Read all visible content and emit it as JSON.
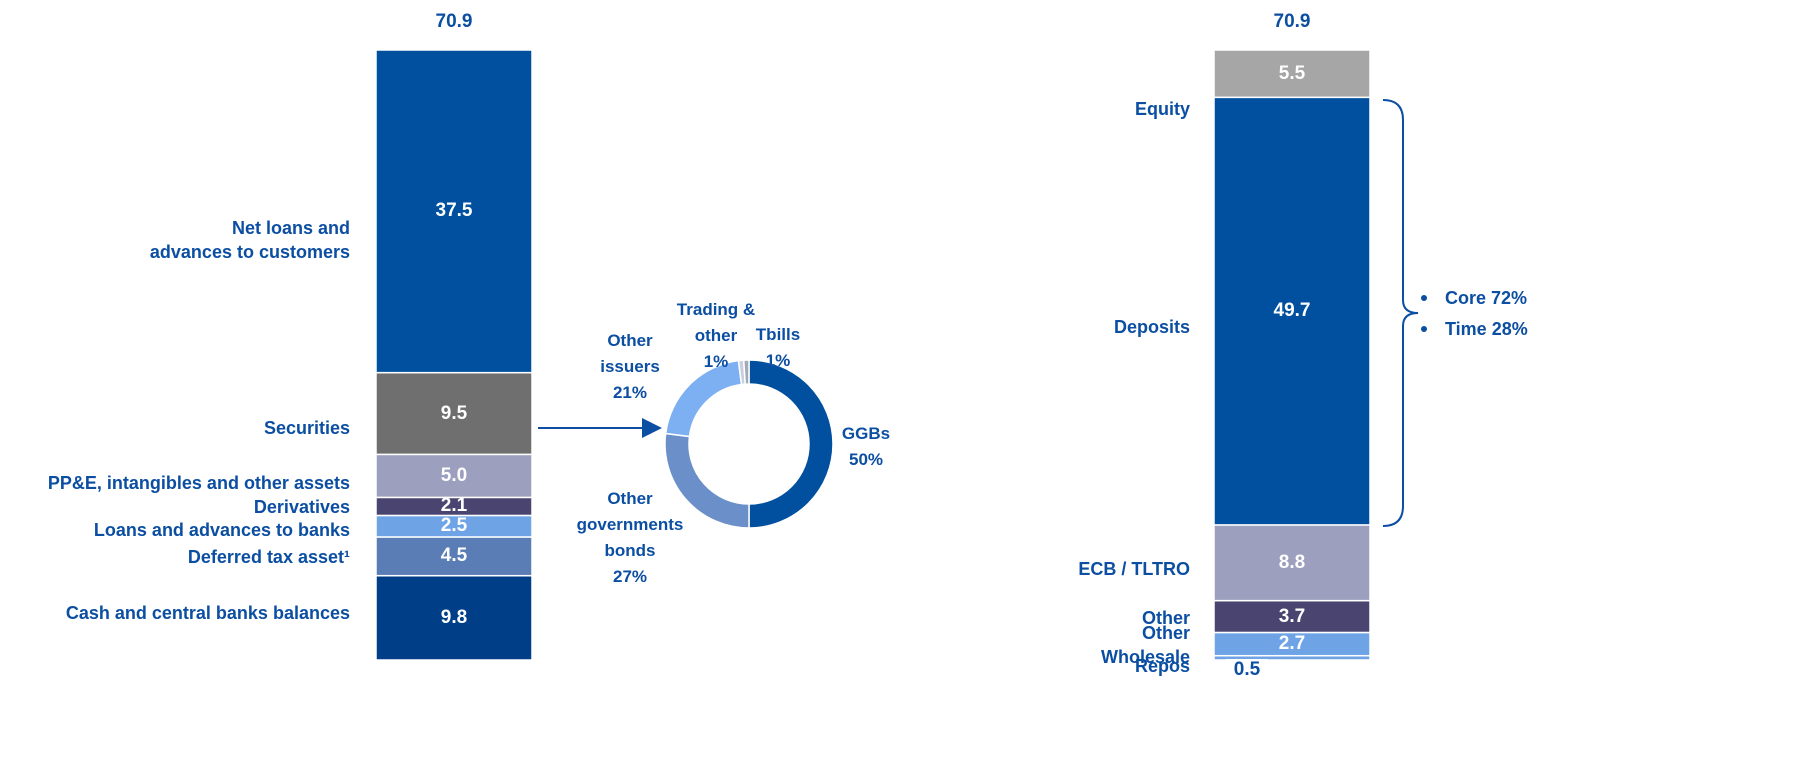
{
  "chart_data": [
    {
      "type": "stacked_bar",
      "total": 70.9,
      "ylim": [
        0,
        70.9
      ],
      "categories": [
        "Cash and central banks balances",
        "Deferred tax asset¹",
        "Loans and advances to banks",
        "Derivatives",
        "PP&E, intangibles and other assets",
        "Securities",
        "Net loans and\nadvances to customers"
      ],
      "values": [
        9.8,
        4.5,
        2.5,
        2.1,
        5.0,
        9.5,
        37.5
      ],
      "value_labels": [
        "9.8",
        "4.5",
        "2.5",
        "2.1",
        "5.0",
        "9.5",
        "37.5"
      ],
      "colors": [
        "#003f87",
        "#5b7db6",
        "#6ea3e6",
        "#4a4470",
        "#9c9fbd",
        "#6f6f6f",
        "#00509f"
      ]
    },
    {
      "type": "donut",
      "categories": [
        "GGBs",
        "Other\ngovernments\nbonds",
        "Other\nissuers",
        "Trading &\nother",
        "Tbills"
      ],
      "values": [
        50,
        27,
        21,
        1,
        1
      ],
      "value_labels": [
        "50%",
        "27%",
        "21%",
        "1%",
        "1%"
      ],
      "colors": [
        "#00509f",
        "#6a8fc9",
        "#7cb0f2",
        "#c9cfdc",
        "#a2a9ba"
      ]
    },
    {
      "type": "stacked_bar",
      "total": 70.9,
      "ylim": [
        0,
        70.9
      ],
      "categories": [
        "Repos",
        "Other\nWholesale",
        "Other",
        "ECB / TLTRO",
        "Deposits",
        "Equity"
      ],
      "values": [
        0.5,
        2.7,
        3.7,
        8.8,
        49.7,
        5.5
      ],
      "colors": [
        "#6ea3e6",
        "#6ea3e6",
        "#4a4470",
        "#9c9fbd",
        "#00509f",
        "#a6a6a6"
      ],
      "annotations": [
        "Core 72%",
        "Time 28%"
      ]
    }
  ]
}
